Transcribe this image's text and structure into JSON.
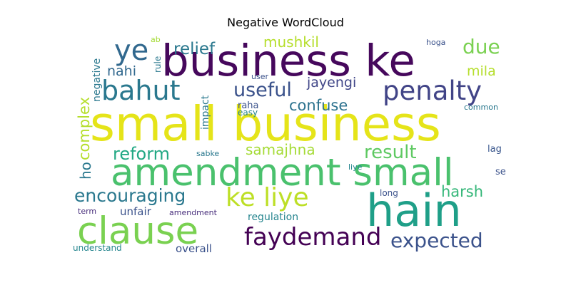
{
  "chart_data": {
    "type": "wordcloud",
    "title": "Negative WordCloud",
    "grid": false,
    "background": "#ffffff",
    "colormap": "viridis",
    "words": [
      {
        "text": "small business",
        "weight": 1.0,
        "color": "#e5e419",
        "orientation": "horizontal"
      },
      {
        "text": "business ke",
        "weight": 0.92,
        "color": "#46085c",
        "orientation": "horizontal"
      },
      {
        "text": "amendment small",
        "weight": 0.86,
        "color": "#4ac16d",
        "orientation": "horizontal"
      },
      {
        "text": "hain",
        "weight": 0.8,
        "color": "#1f9f88",
        "orientation": "horizontal"
      },
      {
        "text": "clause",
        "weight": 0.75,
        "color": "#7ad151",
        "orientation": "horizontal"
      },
      {
        "text": "ke liye",
        "weight": 0.62,
        "color": "#bddf26",
        "orientation": "horizontal"
      },
      {
        "text": "bahut",
        "weight": 0.55,
        "color": "#2a788e",
        "orientation": "horizontal"
      },
      {
        "text": "penalty",
        "weight": 0.54,
        "color": "#414487",
        "orientation": "horizontal"
      },
      {
        "text": "faydemand",
        "weight": 0.52,
        "color": "#440154",
        "orientation": "horizontal"
      },
      {
        "text": "ye",
        "weight": 0.5,
        "color": "#31688e",
        "orientation": "horizontal"
      },
      {
        "text": "expected",
        "weight": 0.45,
        "color": "#3b528b",
        "orientation": "horizontal"
      },
      {
        "text": "encouraging",
        "weight": 0.4,
        "color": "#2a788e",
        "orientation": "horizontal"
      },
      {
        "text": "useful",
        "weight": 0.38,
        "color": "#3b528b",
        "orientation": "horizontal"
      },
      {
        "text": "reform",
        "weight": 0.36,
        "color": "#22a884",
        "orientation": "horizontal"
      },
      {
        "text": "result",
        "weight": 0.35,
        "color": "#5ec962",
        "orientation": "horizontal"
      },
      {
        "text": "due",
        "weight": 0.34,
        "color": "#7ad151",
        "orientation": "horizontal"
      },
      {
        "text": "relief",
        "weight": 0.3,
        "color": "#2a788e",
        "orientation": "horizontal"
      },
      {
        "text": "confuse",
        "weight": 0.28,
        "color": "#2c728e",
        "orientation": "horizontal"
      },
      {
        "text": "mushkil",
        "weight": 0.27,
        "color": "#b5de2b",
        "orientation": "horizontal"
      },
      {
        "text": "harsh",
        "weight": 0.27,
        "color": "#35b779",
        "orientation": "horizontal"
      },
      {
        "text": "complex",
        "weight": 0.26,
        "color": "#b5de2b",
        "orientation": "vertical"
      },
      {
        "text": "samajhna",
        "weight": 0.26,
        "color": "#a5db36",
        "orientation": "horizontal"
      },
      {
        "text": "nahi",
        "weight": 0.25,
        "color": "#31688e",
        "orientation": "horizontal"
      },
      {
        "text": "jayengi",
        "weight": 0.25,
        "color": "#404688",
        "orientation": "horizontal"
      },
      {
        "text": "mila",
        "weight": 0.25,
        "color": "#b5de2b",
        "orientation": "horizontal"
      },
      {
        "text": "ho",
        "weight": 0.24,
        "color": "#2a788e",
        "orientation": "vertical"
      },
      {
        "text": "unfair",
        "weight": 0.22,
        "color": "#3b528b",
        "orientation": "horizontal"
      },
      {
        "text": "overall",
        "weight": 0.22,
        "color": "#3b528b",
        "orientation": "horizontal"
      },
      {
        "text": "regulation",
        "weight": 0.21,
        "color": "#25858e",
        "orientation": "horizontal"
      },
      {
        "text": "negative",
        "weight": 0.2,
        "color": "#2a788e",
        "orientation": "vertical"
      },
      {
        "text": "impact",
        "weight": 0.2,
        "color": "#2a788e",
        "orientation": "vertical"
      },
      {
        "text": "raha",
        "weight": 0.18,
        "color": "#3b528b",
        "orientation": "horizontal"
      },
      {
        "text": "lag",
        "weight": 0.18,
        "color": "#39568c",
        "orientation": "horizontal"
      },
      {
        "text": "easy",
        "weight": 0.16,
        "color": "#25858e",
        "orientation": "horizontal"
      },
      {
        "text": "long",
        "weight": 0.15,
        "color": "#3b528b",
        "orientation": "horizontal"
      },
      {
        "text": "se",
        "weight": 0.15,
        "color": "#3b528b",
        "orientation": "horizontal"
      },
      {
        "text": "understand",
        "weight": 0.15,
        "color": "#25858e",
        "orientation": "horizontal"
      },
      {
        "text": "term",
        "weight": 0.15,
        "color": "#472d7b",
        "orientation": "horizontal"
      },
      {
        "text": "amendment",
        "weight": 0.14,
        "color": "#472d7b",
        "orientation": "horizontal"
      },
      {
        "text": "sabke",
        "weight": 0.14,
        "color": "#2a788e",
        "orientation": "horizontal"
      },
      {
        "text": "liye",
        "weight": 0.14,
        "color": "#25858e",
        "orientation": "horizontal"
      },
      {
        "text": "common",
        "weight": 0.14,
        "color": "#2a788e",
        "orientation": "horizontal"
      },
      {
        "text": "hoga",
        "weight": 0.14,
        "color": "#3b528b",
        "orientation": "horizontal"
      },
      {
        "text": "rule",
        "weight": 0.13,
        "color": "#2a788e",
        "orientation": "vertical"
      },
      {
        "text": "ab",
        "weight": 0.13,
        "color": "#a5db36",
        "orientation": "horizontal"
      },
      {
        "text": "user",
        "weight": 0.13,
        "color": "#3b528b",
        "orientation": "horizontal"
      }
    ]
  }
}
